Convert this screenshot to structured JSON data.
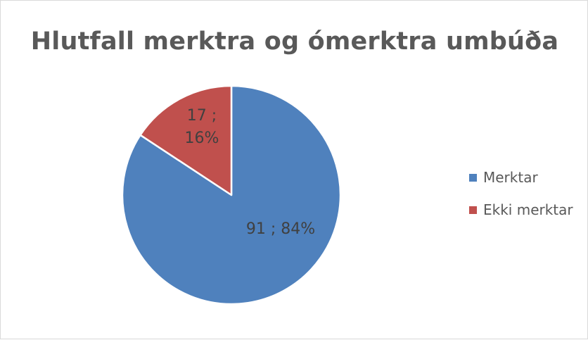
{
  "chart_data": {
    "type": "pie",
    "title": "Hlutfall merktra og ómerktra umbúða",
    "slices": [
      {
        "name": "Merktar",
        "value": 91,
        "percent": 84,
        "color": "#4f81bd",
        "label_line1": "91 ; 84%",
        "label_line2": ""
      },
      {
        "name": "Ekki merktar",
        "value": 17,
        "percent": 16,
        "color": "#c0504d",
        "label_line1": "17 ;",
        "label_line2": "16%"
      }
    ],
    "start_angle_deg": 0,
    "direction": "clockwise",
    "legend_position": "right"
  }
}
